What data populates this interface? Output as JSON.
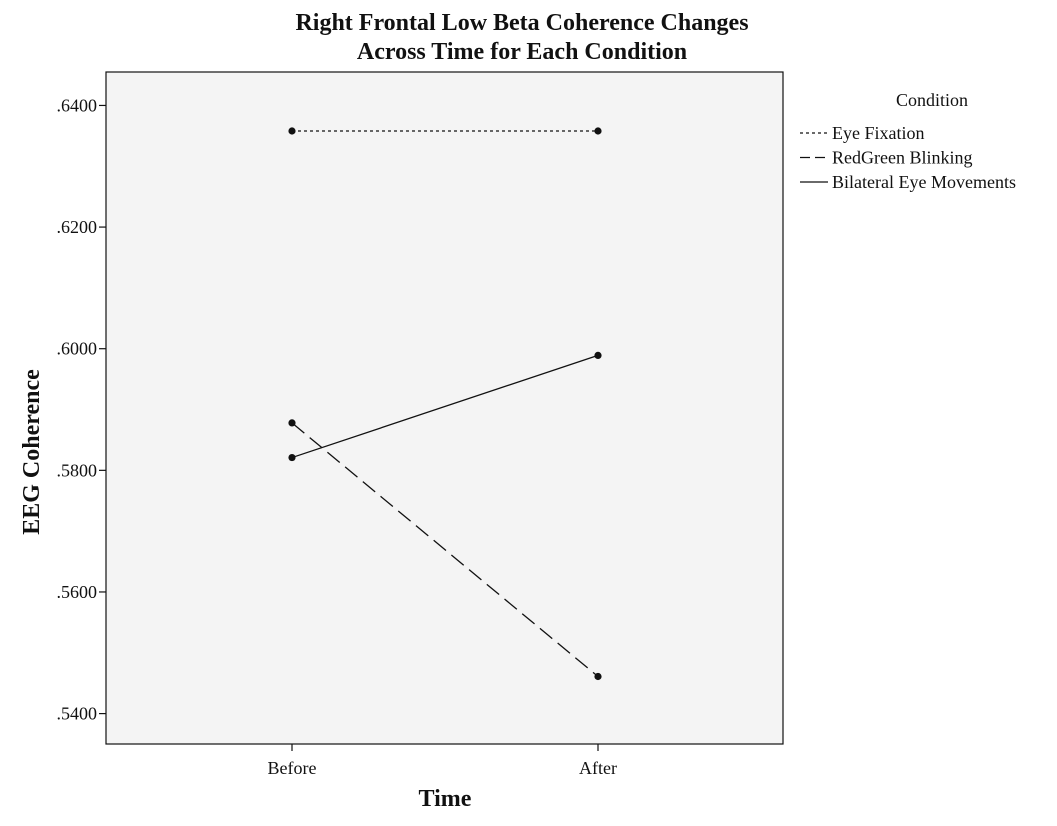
{
  "chart_data": {
    "type": "line",
    "title": "Right Frontal Low Beta Coherence Changes",
    "subtitle": "Across Time for Each Condition",
    "xlabel": "Time",
    "ylabel": "EEG Coherence",
    "categories": [
      "Before",
      "After"
    ],
    "ylim": [
      0.535,
      0.6455
    ],
    "yticks": [
      0.54,
      0.56,
      0.58,
      0.6,
      0.62,
      0.64
    ],
    "ytick_labels": [
      ".5400",
      ".5600",
      ".5800",
      ".6000",
      ".6200",
      ".6400"
    ],
    "grid": false,
    "legend": {
      "title": "Condition",
      "position": "right"
    },
    "series": [
      {
        "name": "Eye Fixation",
        "values": [
          0.6358,
          0.6358
        ],
        "line_style": "dotted",
        "color": "#111111"
      },
      {
        "name": "RedGreen Blinking",
        "values": [
          0.5878,
          0.5461
        ],
        "line_style": "dashed",
        "color": "#111111"
      },
      {
        "name": "Bilateral Eye Movements",
        "values": [
          0.5821,
          0.5989
        ],
        "line_style": "solid",
        "color": "#111111"
      }
    ],
    "plot_background": "#f4f4f4"
  }
}
